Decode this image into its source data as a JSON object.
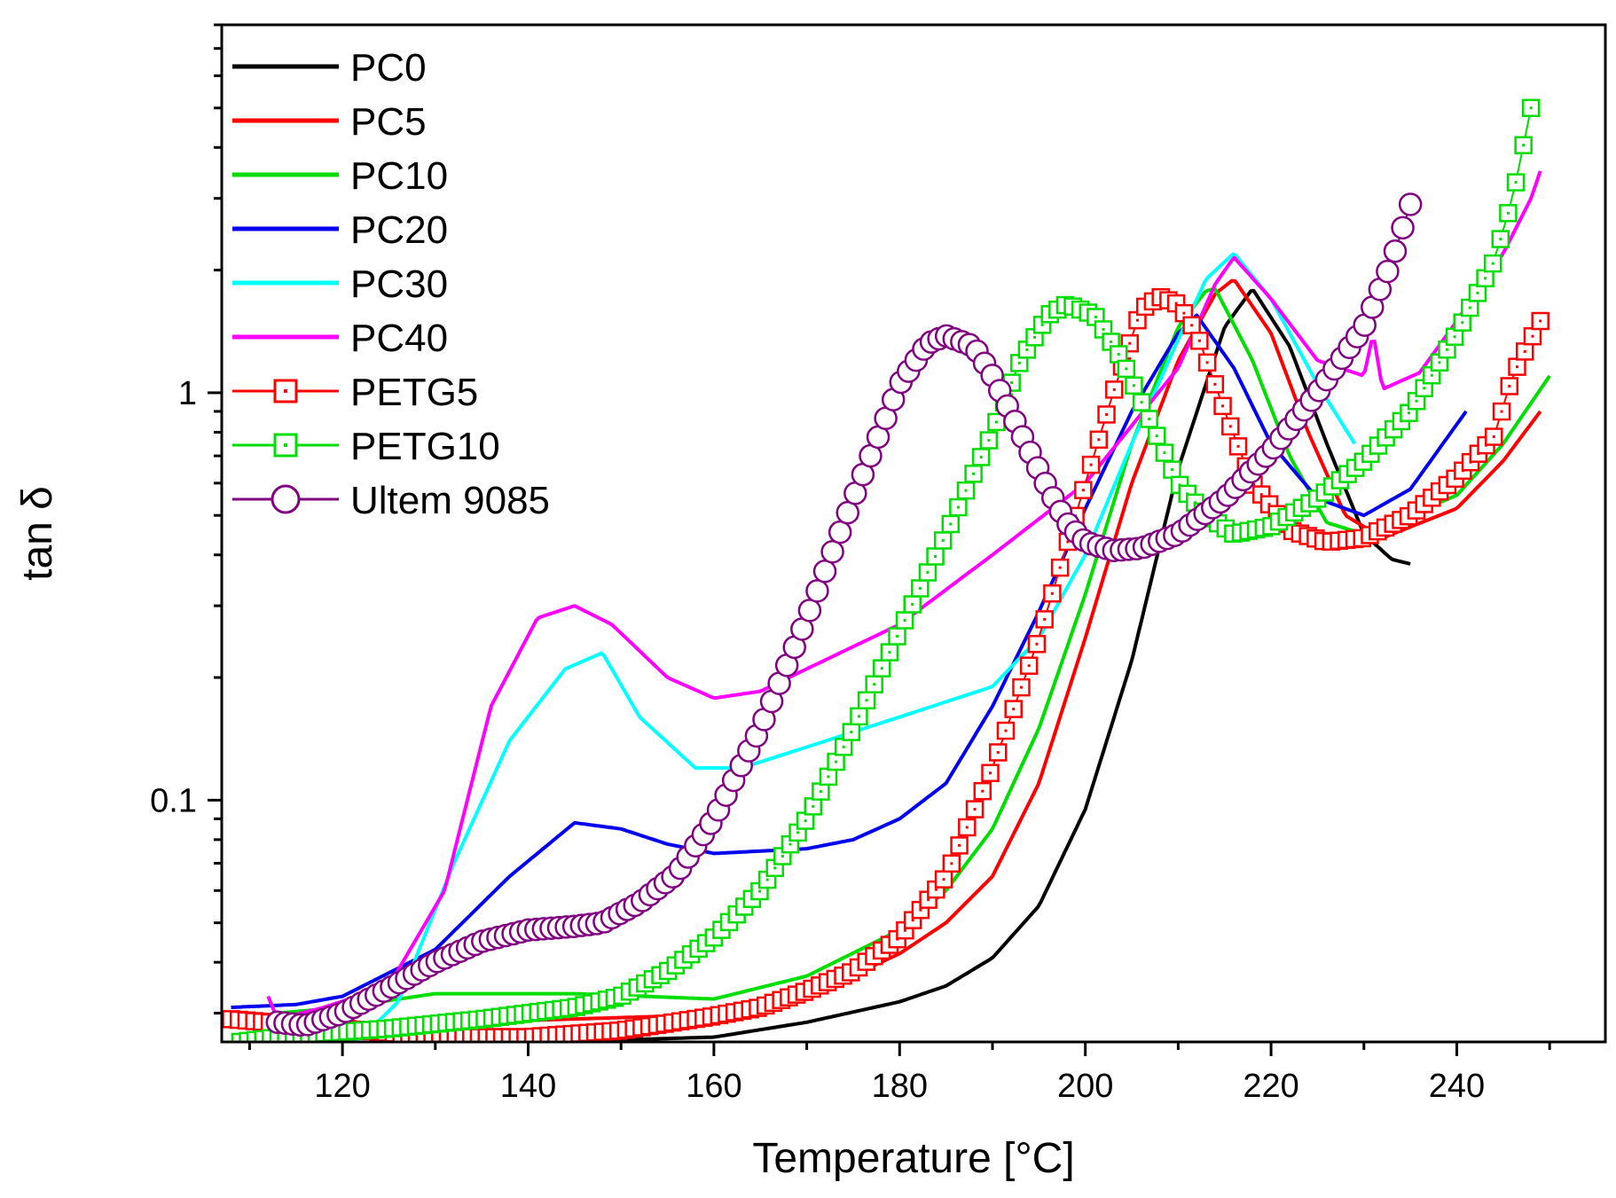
{
  "chart_data": {
    "type": "line",
    "title": "",
    "xlabel": "Temperature [°C]",
    "ylabel": "tan δ",
    "xlim": [
      107,
      256
    ],
    "ylim": [
      0.0255,
      8.0
    ],
    "yscale": "log",
    "grid": false,
    "legend_position": "top-left",
    "x_ticks": [
      {
        "value": 120,
        "label": "120"
      },
      {
        "value": 140,
        "label": "140"
      },
      {
        "value": 160,
        "label": "160"
      },
      {
        "value": 180,
        "label": "180"
      },
      {
        "value": 200,
        "label": "200"
      },
      {
        "value": 220,
        "label": "220"
      },
      {
        "value": 240,
        "label": "240"
      }
    ],
    "y_ticks": [
      {
        "value": 0.1,
        "label": "0.1"
      },
      {
        "value": 1,
        "label": "1"
      }
    ],
    "series": [
      {
        "name": "PC0",
        "color": "#000000",
        "marker": "none",
        "x": [
          108,
          115,
          125,
          135,
          150,
          160,
          170,
          180,
          185,
          190,
          195,
          200,
          205,
          210,
          215,
          218,
          222,
          226,
          230,
          233,
          235
        ],
        "y": [
          0.029,
          0.028,
          0.0275,
          0.0268,
          0.0258,
          0.0262,
          0.0285,
          0.032,
          0.035,
          0.041,
          0.055,
          0.095,
          0.22,
          0.65,
          1.45,
          1.8,
          1.3,
          0.75,
          0.45,
          0.39,
          0.38
        ]
      },
      {
        "name": "PC5",
        "color": "#ff0000",
        "marker": "none",
        "x": [
          108,
          115,
          125,
          140,
          155,
          170,
          180,
          185,
          190,
          195,
          200,
          205,
          210,
          214,
          216,
          220,
          224,
          228,
          232,
          240,
          245,
          249
        ],
        "y": [
          0.029,
          0.0285,
          0.028,
          0.0288,
          0.0295,
          0.033,
          0.042,
          0.05,
          0.065,
          0.11,
          0.25,
          0.6,
          1.2,
          1.75,
          1.9,
          1.4,
          0.8,
          0.5,
          0.44,
          0.52,
          0.68,
          0.9
        ]
      },
      {
        "name": "PC10",
        "color": "#00dd00",
        "marker": "none",
        "x": [
          113,
          120,
          130,
          145,
          160,
          170,
          180,
          185,
          190,
          195,
          200,
          205,
          210,
          213,
          214,
          218,
          222,
          226,
          230,
          240,
          245,
          250
        ],
        "y": [
          0.03,
          0.031,
          0.0335,
          0.0335,
          0.0325,
          0.037,
          0.048,
          0.06,
          0.085,
          0.15,
          0.32,
          0.75,
          1.45,
          1.78,
          1.8,
          1.2,
          0.7,
          0.48,
          0.45,
          0.56,
          0.75,
          1.1
        ]
      },
      {
        "name": "PC20",
        "color": "#0000ee",
        "marker": "none",
        "x": [
          108,
          115,
          120,
          130,
          138,
          145,
          150,
          155,
          160,
          170,
          175,
          180,
          185,
          190,
          195,
          200,
          205,
          210,
          212,
          216,
          220,
          225,
          230,
          235,
          241
        ],
        "y": [
          0.031,
          0.0315,
          0.033,
          0.043,
          0.065,
          0.088,
          0.085,
          0.078,
          0.074,
          0.076,
          0.08,
          0.09,
          0.11,
          0.17,
          0.29,
          0.52,
          0.9,
          1.4,
          1.55,
          1.15,
          0.75,
          0.55,
          0.5,
          0.58,
          0.9
        ]
      },
      {
        "name": "PC30",
        "color": "#00ffff",
        "marker": "none",
        "x": [
          110,
          115,
          122,
          126,
          132,
          138,
          144,
          148,
          152,
          158,
          163,
          170,
          180,
          190,
          195,
          200,
          205,
          210,
          213,
          216,
          220,
          225,
          229
        ],
        "y": [
          0.024,
          0.025,
          0.026,
          0.032,
          0.07,
          0.14,
          0.21,
          0.23,
          0.16,
          0.12,
          0.12,
          0.135,
          0.16,
          0.19,
          0.25,
          0.4,
          0.75,
          1.35,
          1.9,
          2.2,
          1.7,
          1.05,
          0.75
        ]
      },
      {
        "name": "PC40",
        "color": "#ff00ff",
        "marker": "none",
        "x": [
          112,
          113,
          118,
          125,
          131,
          136,
          141,
          145,
          149,
          155,
          160,
          165,
          170,
          180,
          190,
          200,
          210,
          214,
          216,
          220,
          225,
          230,
          231,
          232,
          236,
          240,
          245,
          248,
          249
        ],
        "y": [
          0.033,
          0.029,
          0.031,
          0.035,
          0.06,
          0.17,
          0.28,
          0.3,
          0.27,
          0.2,
          0.178,
          0.185,
          0.21,
          0.27,
          0.4,
          0.6,
          1.15,
          1.85,
          2.15,
          1.7,
          1.2,
          1.1,
          1.4,
          1.02,
          1.12,
          1.5,
          2.2,
          3.0,
          3.5
        ]
      },
      {
        "name": "PETG5",
        "color": "#ff0000",
        "marker": "square",
        "x": [
          108,
          120,
          130,
          140,
          150,
          160,
          165,
          170,
          175,
          180,
          185,
          190,
          195,
          200,
          203,
          206,
          208,
          210,
          212,
          215,
          218,
          222,
          226,
          230,
          235,
          240,
          244,
          246,
          249
        ],
        "y": [
          0.029,
          0.0275,
          0.0262,
          0.0262,
          0.0272,
          0.0295,
          0.031,
          0.034,
          0.038,
          0.046,
          0.065,
          0.12,
          0.25,
          0.6,
          1.0,
          1.6,
          1.72,
          1.65,
          1.4,
          0.9,
          0.6,
          0.46,
          0.43,
          0.44,
          0.5,
          0.62,
          0.78,
          1.1,
          1.5
        ]
      },
      {
        "name": "PETG10",
        "color": "#00dd00",
        "marker": "square",
        "x": [
          109,
          115,
          125,
          135,
          145,
          150,
          155,
          160,
          165,
          170,
          175,
          180,
          185,
          190,
          193,
          196,
          198,
          201,
          204,
          207,
          210,
          213,
          216,
          220,
          225,
          230,
          235,
          240,
          244,
          246,
          248
        ],
        "y": [
          0.0255,
          0.0265,
          0.0275,
          0.029,
          0.031,
          0.033,
          0.038,
          0.046,
          0.06,
          0.09,
          0.15,
          0.26,
          0.45,
          0.8,
          1.2,
          1.55,
          1.65,
          1.55,
          1.2,
          0.85,
          0.6,
          0.5,
          0.45,
          0.47,
          0.55,
          0.68,
          0.9,
          1.4,
          2.1,
          3.0,
          5.0
        ]
      },
      {
        "name": "Ultem 9085",
        "color": "#800080",
        "marker": "circle",
        "x": [
          113,
          116,
          120,
          125,
          130,
          135,
          140,
          145,
          148,
          152,
          156,
          160,
          165,
          170,
          175,
          180,
          183,
          185,
          188,
          190,
          193,
          196,
          198,
          200,
          203,
          206,
          210,
          215,
          220,
          225,
          230,
          233,
          235
        ],
        "y": [
          0.0285,
          0.028,
          0.03,
          0.0345,
          0.04,
          0.045,
          0.048,
          0.049,
          0.05,
          0.056,
          0.066,
          0.09,
          0.15,
          0.28,
          0.55,
          1.05,
          1.32,
          1.38,
          1.3,
          1.1,
          0.8,
          0.58,
          0.48,
          0.43,
          0.41,
          0.415,
          0.45,
          0.55,
          0.72,
          1.0,
          1.45,
          2.1,
          2.9
        ]
      }
    ]
  }
}
